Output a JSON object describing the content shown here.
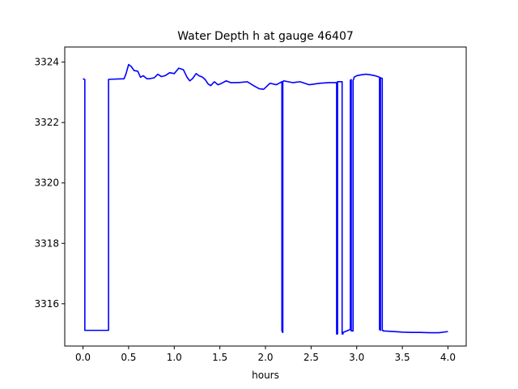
{
  "chart_data": {
    "type": "line",
    "title": "Water Depth h at gauge 46407",
    "xlabel": "hours",
    "ylabel": "",
    "xlim": [
      -0.2,
      4.2
    ],
    "ylim": [
      3314.6,
      3324.5
    ],
    "xticks": [
      0.0,
      0.5,
      1.0,
      1.5,
      2.0,
      2.5,
      3.0,
      3.5,
      4.0
    ],
    "xtick_labels": [
      "0.0",
      "0.5",
      "1.0",
      "1.5",
      "2.0",
      "2.5",
      "3.0",
      "3.5",
      "4.0"
    ],
    "yticks": [
      3316,
      3318,
      3320,
      3322,
      3324
    ],
    "ytick_labels": [
      "3316",
      "3318",
      "3320",
      "3322",
      "3324"
    ],
    "grid": false,
    "series": [
      {
        "color": "#0000ff",
        "x": [
          0.0,
          0.02,
          0.02,
          0.28,
          0.28,
          0.45,
          0.47,
          0.5,
          0.53,
          0.56,
          0.6,
          0.63,
          0.66,
          0.7,
          0.73,
          0.78,
          0.82,
          0.86,
          0.9,
          0.95,
          1.0,
          1.05,
          1.1,
          1.14,
          1.17,
          1.2,
          1.24,
          1.27,
          1.31,
          1.34,
          1.37,
          1.4,
          1.44,
          1.48,
          1.52,
          1.57,
          1.62,
          1.7,
          1.8,
          1.87,
          1.93,
          1.98,
          2.05,
          2.12,
          2.18,
          2.18,
          2.19,
          2.19,
          2.2,
          2.3,
          2.38,
          2.48,
          2.6,
          2.7,
          2.78,
          2.78,
          2.79,
          2.79,
          2.84,
          2.84,
          2.85,
          2.85,
          2.93,
          2.93,
          2.94,
          2.94,
          2.96,
          2.96,
          2.97,
          2.97,
          3.0,
          3.05,
          3.1,
          3.15,
          3.2,
          3.25,
          3.25,
          3.26,
          3.26,
          3.28,
          3.28,
          3.29,
          3.29,
          3.4,
          3.5,
          3.6,
          3.7,
          3.8,
          3.9,
          4.0
        ],
        "y": [
          3323.45,
          3323.42,
          3315.12,
          3315.12,
          3323.43,
          3323.45,
          3323.6,
          3323.92,
          3323.85,
          3323.72,
          3323.7,
          3323.5,
          3323.55,
          3323.45,
          3323.45,
          3323.48,
          3323.6,
          3323.52,
          3323.55,
          3323.65,
          3323.62,
          3323.8,
          3323.75,
          3323.5,
          3323.38,
          3323.45,
          3323.62,
          3323.55,
          3323.5,
          3323.42,
          3323.28,
          3323.22,
          3323.35,
          3323.25,
          3323.3,
          3323.38,
          3323.32,
          3323.32,
          3323.35,
          3323.22,
          3323.12,
          3323.1,
          3323.3,
          3323.25,
          3323.35,
          3315.1,
          3315.05,
          3323.35,
          3323.38,
          3323.32,
          3323.35,
          3323.25,
          3323.3,
          3323.32,
          3323.32,
          3315.0,
          3315.0,
          3323.35,
          3323.35,
          3315.0,
          3315.0,
          3315.05,
          3315.15,
          3323.4,
          3323.42,
          3315.1,
          3315.1,
          3323.4,
          3323.45,
          3323.5,
          3323.55,
          3323.58,
          3323.6,
          3323.58,
          3323.55,
          3323.5,
          3315.15,
          3315.12,
          3323.48,
          3323.46,
          3315.12,
          3315.12,
          3315.1,
          3315.08,
          3315.06,
          3315.05,
          3315.05,
          3315.04,
          3315.04,
          3315.08
        ]
      }
    ]
  }
}
